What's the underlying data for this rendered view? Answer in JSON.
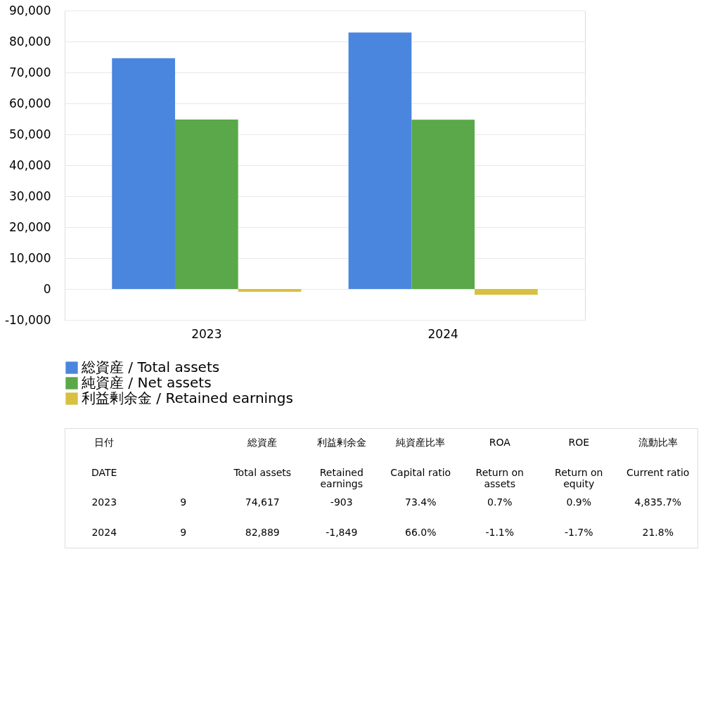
{
  "chart_data": [
    {
      "type": "bar",
      "categories": [
        "2023",
        "2024"
      ],
      "series": [
        {
          "name": "総資産 / Total assets",
          "color": "#4a86de",
          "values": [
            74617,
            82889
          ]
        },
        {
          "name": "純資産 / Net assets",
          "color": "#5aa84a",
          "values": [
            54800,
            54700
          ]
        },
        {
          "name": "利益剰余金 / Retained earnings",
          "color": "#d8c040",
          "values": [
            -903,
            -1849
          ]
        }
      ],
      "ylim": [
        -10000,
        90000
      ],
      "yticks": [
        {
          "value": -10000,
          "label": "-10,000"
        },
        0,
        {
          "value": 10000,
          "label": "10,000"
        },
        {
          "value": 20000,
          "label": "20,000"
        },
        {
          "value": 30000,
          "label": "30,000"
        },
        {
          "value": 40000,
          "label": "40,000"
        },
        {
          "value": 50000,
          "label": "50,000"
        },
        {
          "value": 60000,
          "label": "60,000"
        },
        {
          "value": 70000,
          "label": "70,000"
        },
        {
          "value": 80000,
          "label": "80,000"
        },
        {
          "value": 90000,
          "label": "90,000"
        }
      ],
      "grid": "y",
      "legend": "bottom"
    },
    {
      "type": "other",
      "categories": [
        "日付",
        null,
        "総資産",
        "利益剰余金",
        "純資産比率",
        "ROA",
        "ROE",
        "流動比率"
      ],
      "annotations": [
        "DATE",
        null,
        "Total assets",
        "Retained\nearnings",
        "Capital ratio",
        "Return on\nassets",
        "Return on\nequity",
        "Current ratio",
        "2023",
        "9",
        "74,617",
        "-903",
        "73.4%",
        "0.7%",
        "0.9%",
        "4,835.7%",
        "2024",
        "9",
        "82,889",
        "-1,849",
        "66.0%",
        "-1.1%",
        "-1.7%",
        "21.8%"
      ]
    }
  ]
}
